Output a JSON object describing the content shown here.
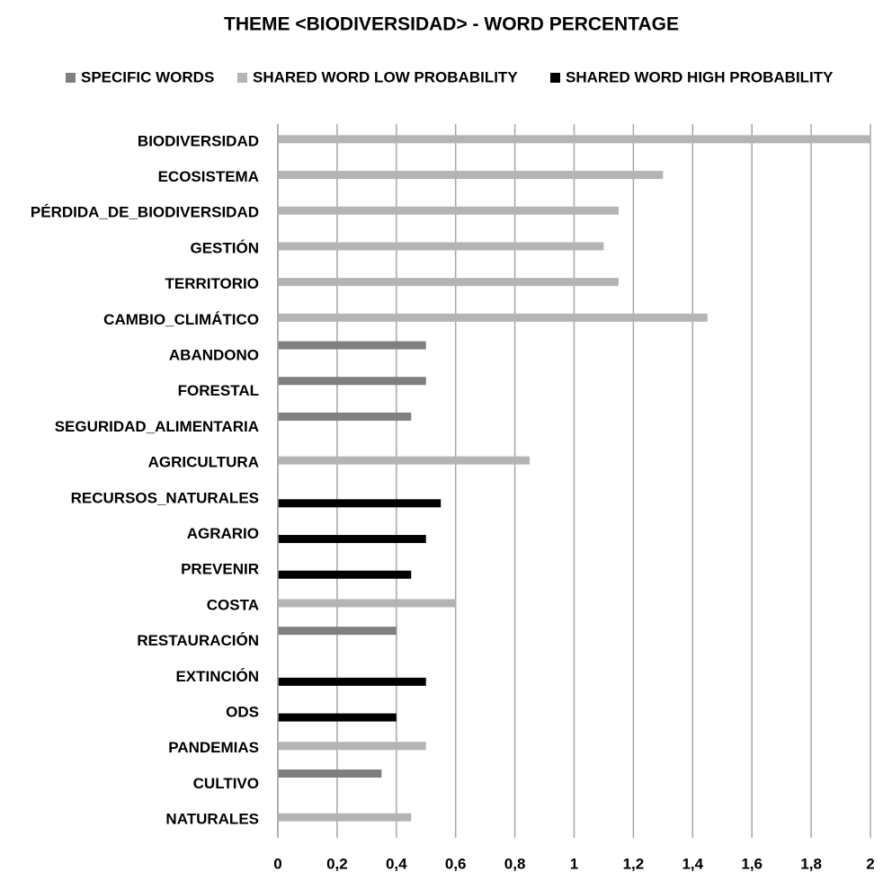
{
  "chart_data": {
    "type": "bar",
    "orientation": "horizontal",
    "title": "THEME <BIODIVERSIDAD> - WORD PERCENTAGE",
    "categories": [
      "BIODIVERSIDAD",
      "ECOSISTEMA",
      "PÉRDIDA_DE_BIODIVERSIDAD",
      "GESTIÓN",
      "TERRITORIO",
      "CAMBIO_CLIMÁTICO",
      "ABANDONO",
      "FORESTAL",
      "SEGURIDAD_ALIMENTARIA",
      "AGRICULTURA",
      "RECURSOS_NATURALES",
      "AGRARIO",
      "PREVENIR",
      "COSTA",
      "RESTAURACIÓN",
      "EXTINCIÓN",
      "ODS",
      "PANDEMIAS",
      "CULTIVO",
      "NATURALES"
    ],
    "series": [
      {
        "name": "SPECIFIC WORDS",
        "color": "#7f7f7f",
        "values": [
          null,
          null,
          null,
          null,
          null,
          null,
          0.5,
          0.5,
          0.45,
          null,
          null,
          null,
          null,
          null,
          0.4,
          null,
          null,
          null,
          0.35,
          null
        ]
      },
      {
        "name": "SHARED WORD LOW PROBABILITY",
        "color": "#b4b4b4",
        "values": [
          2,
          1.3,
          1.15,
          1.1,
          1.15,
          1.45,
          null,
          null,
          null,
          0.85,
          null,
          null,
          null,
          0.6,
          null,
          null,
          null,
          0.5,
          null,
          0.45
        ]
      },
      {
        "name": "SHARED WORD HIGH PROBABILITY",
        "color": "#000000",
        "values": [
          null,
          null,
          null,
          null,
          null,
          null,
          null,
          null,
          null,
          null,
          0.55,
          0.5,
          0.45,
          null,
          null,
          0.5,
          0.4,
          null,
          null,
          null
        ]
      }
    ],
    "xlim": [
      0,
      2
    ],
    "xticks": [
      0,
      {
        "value": 0.2,
        "label": "0,2"
      },
      {
        "value": 0.4,
        "label": "0,4"
      },
      {
        "value": 0.6,
        "label": "0,6"
      },
      {
        "value": 0.8,
        "label": "0,8"
      },
      1,
      {
        "value": 1.2,
        "label": "1,2"
      },
      {
        "value": 1.4,
        "label": "1,4"
      },
      {
        "value": 1.6,
        "label": "1,6"
      },
      {
        "value": 1.8,
        "label": "1,8"
      },
      2
    ],
    "grid": true,
    "legend": "top"
  }
}
